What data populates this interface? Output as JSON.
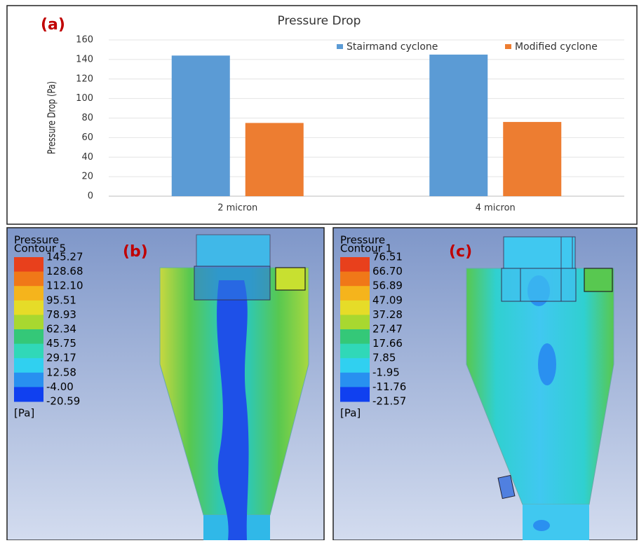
{
  "chart_data": {
    "type": "bar",
    "panel_label": "(a)",
    "title": "Pressure Drop",
    "ylabel": "Pressure Drop (Pa)",
    "categories": [
      "2 micron",
      "4 micron"
    ],
    "series": [
      {
        "name": "Stairmand cyclone",
        "color": "#5b9bd5",
        "values": [
          144,
          145
        ]
      },
      {
        "name": "Modified cyclone",
        "color": "#ed7d31",
        "values": [
          75,
          76
        ]
      }
    ],
    "ylim": [
      0,
      160
    ],
    "yticks": [
      0,
      20,
      40,
      60,
      80,
      100,
      120,
      140,
      160
    ],
    "grid": true,
    "legend": "top-right"
  },
  "contours": [
    {
      "panel_label": "(b)",
      "title": "Pressure",
      "subtitle": "Contour 5",
      "unit": "[Pa]",
      "levels": [
        "145.27",
        "128.68",
        "112.10",
        "95.51",
        "78.93",
        "62.34",
        "45.75",
        "29.17",
        "12.58",
        "-4.00",
        "-20.59"
      ]
    },
    {
      "panel_label": "(c)",
      "title": "Pressure",
      "subtitle": "Contour 1",
      "unit": "[Pa]",
      "levels": [
        "76.51",
        "66.70",
        "56.89",
        "47.09",
        "37.28",
        "27.47",
        "17.66",
        "7.85",
        "-1.95",
        "-11.76",
        "-21.57"
      ]
    }
  ]
}
